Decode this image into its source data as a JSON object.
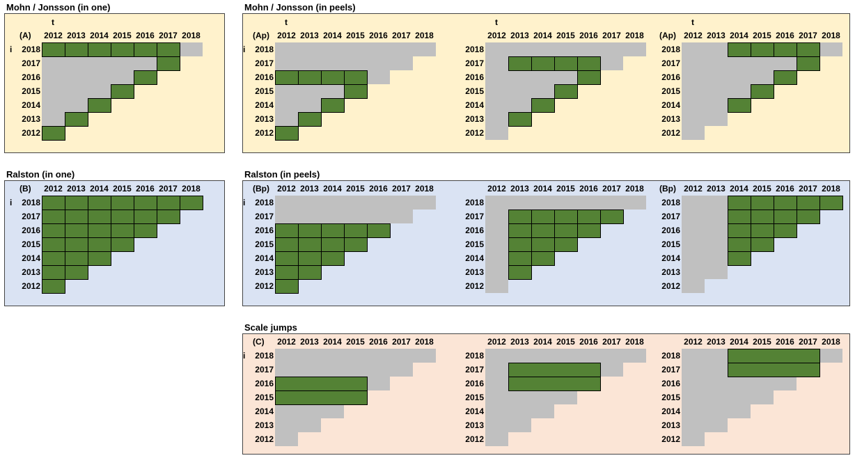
{
  "years": [
    "2012",
    "2013",
    "2014",
    "2015",
    "2016",
    "2017",
    "2018"
  ],
  "colors": {
    "panel_yellow": "#fff2cc",
    "panel_blue": "#dae3f3",
    "panel_pink": "#fbe5d6",
    "cell_grey": "#c0c0c0",
    "cell_green": "#548235"
  },
  "sections": [
    {
      "id": "mj-one",
      "title": "Mohn / Jonsson (in one)",
      "color": "panel_yellow",
      "grids": [
        {
          "corner": "(A)",
          "t_label": "t",
          "i_label": "i",
          "filled": [
            [
              2012,
              2012
            ],
            [
              2013,
              2013
            ],
            [
              2014,
              2014
            ],
            [
              2015,
              2015
            ],
            [
              2016,
              2016
            ],
            [
              2017,
              2017
            ],
            [
              2017,
              2018
            ],
            [
              2016,
              2018
            ],
            [
              2015,
              2018
            ],
            [
              2014,
              2018
            ],
            [
              2013,
              2018
            ],
            [
              2012,
              2018
            ]
          ]
        }
      ]
    },
    {
      "id": "mj-peels",
      "title": "Mohn / Jonsson (in peels)",
      "color": "panel_yellow",
      "grids": [
        {
          "corner": "(Ap)",
          "t_label": "t",
          "i_label": "i",
          "filled": [
            [
              2012,
              2012
            ],
            [
              2013,
              2013
            ],
            [
              2014,
              2014
            ],
            [
              2015,
              2015
            ],
            [
              2015,
              2016
            ],
            [
              2014,
              2016
            ],
            [
              2013,
              2016
            ],
            [
              2012,
              2016
            ]
          ]
        },
        {
          "corner": "",
          "t_label": "t",
          "i_label": "",
          "filled": [
            [
              2013,
              2013
            ],
            [
              2014,
              2014
            ],
            [
              2015,
              2015
            ],
            [
              2016,
              2016
            ],
            [
              2016,
              2017
            ],
            [
              2015,
              2017
            ],
            [
              2014,
              2017
            ],
            [
              2013,
              2017
            ]
          ]
        },
        {
          "corner": "(Ap)",
          "t_label": "t",
          "i_label": "",
          "filled": [
            [
              2014,
              2014
            ],
            [
              2015,
              2015
            ],
            [
              2016,
              2016
            ],
            [
              2017,
              2017
            ],
            [
              2017,
              2018
            ],
            [
              2016,
              2018
            ],
            [
              2015,
              2018
            ],
            [
              2014,
              2018
            ]
          ]
        }
      ]
    },
    {
      "id": "ral-one",
      "title": "Ralston (in one)",
      "color": "panel_blue",
      "grids": [
        {
          "corner": "(B)",
          "t_label": "",
          "i_label": "i",
          "filled_triangle": {
            "t_min": 2012,
            "i_max": 2018
          }
        }
      ]
    },
    {
      "id": "ral-peels",
      "title": "Ralston (in peels)",
      "color": "panel_blue",
      "grids": [
        {
          "corner": "(Bp)",
          "t_label": "",
          "i_label": "i",
          "filled_triangle": {
            "t_min": 2012,
            "i_max": 2016
          }
        },
        {
          "corner": "",
          "t_label": "",
          "i_label": "",
          "filled_triangle": {
            "t_min": 2013,
            "i_max": 2017
          }
        },
        {
          "corner": "(Bp)",
          "t_label": "",
          "i_label": "",
          "filled_triangle": {
            "t_min": 2014,
            "i_max": 2018
          }
        }
      ]
    },
    {
      "id": "scale",
      "title": "Scale jumps",
      "color": "panel_pink",
      "grids": [
        {
          "corner": "(C)",
          "t_label": "",
          "i_label": "i",
          "bars": [
            {
              "i": 2016,
              "t_from": 2012,
              "t_to": 2015
            },
            {
              "i": 2015,
              "t_from": 2012,
              "t_to": 2015
            }
          ]
        },
        {
          "corner": "",
          "t_label": "",
          "i_label": "",
          "bars": [
            {
              "i": 2017,
              "t_from": 2013,
              "t_to": 2016
            },
            {
              "i": 2016,
              "t_from": 2013,
              "t_to": 2016
            }
          ]
        },
        {
          "corner": "",
          "t_label": "",
          "i_label": "",
          "bars": [
            {
              "i": 2018,
              "t_from": 2014,
              "t_to": 2017
            },
            {
              "i": 2017,
              "t_from": 2014,
              "t_to": 2017
            }
          ]
        }
      ]
    }
  ]
}
